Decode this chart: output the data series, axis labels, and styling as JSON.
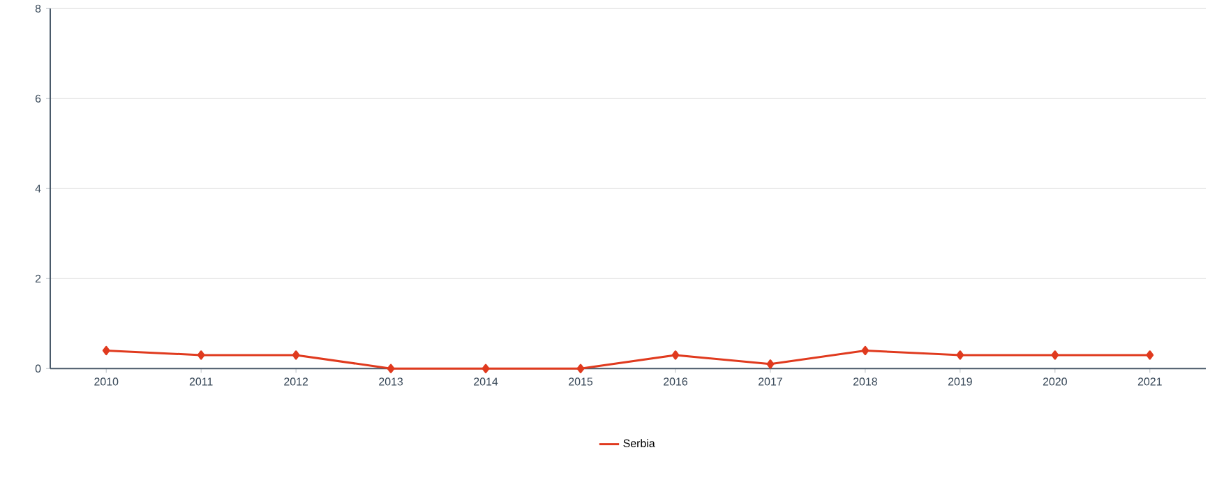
{
  "chart_data": {
    "type": "line",
    "categories": [
      "2010",
      "2011",
      "2012",
      "2013",
      "2014",
      "2015",
      "2016",
      "2017",
      "2018",
      "2019",
      "2020",
      "2021"
    ],
    "series": [
      {
        "name": "Serbia",
        "color": "#e03a1e",
        "values": [
          0.4,
          0.3,
          0.3,
          0,
          0,
          0,
          0.3,
          0.1,
          0.4,
          0.3,
          0.3,
          0.3
        ]
      }
    ],
    "ylim": [
      0,
      8
    ],
    "yticks": [
      0,
      2,
      4,
      6,
      8
    ],
    "grid": "y",
    "legend": "bottom",
    "marker": "diamond",
    "line_style": "solid"
  }
}
